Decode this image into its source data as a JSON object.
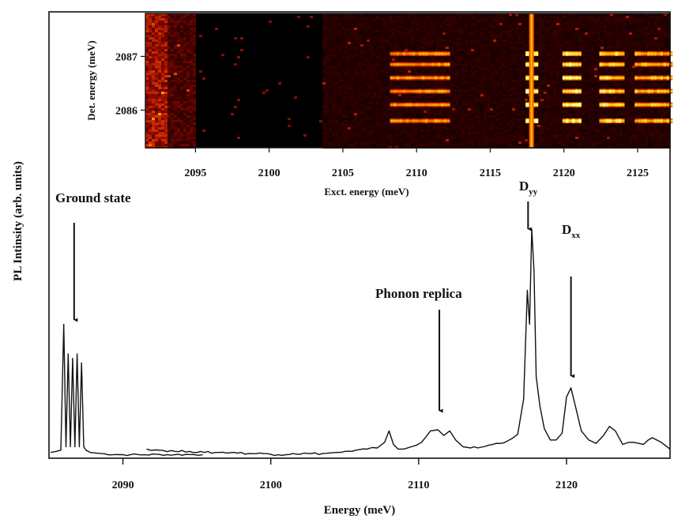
{
  "chart_data": [
    {
      "type": "line",
      "role": "main-spectrum",
      "title": "",
      "xlabel": "Energy (meV)",
      "ylabel": "PL Intinsity (arb. units)",
      "xlim": [
        2085,
        2127
      ],
      "ylim": [
        0,
        100
      ],
      "xticks": [
        2090,
        2100,
        2110,
        2120
      ],
      "ytick_labels": "none",
      "grid": false,
      "series": [
        {
          "name": "",
          "x": [
            2085.1,
            2085.5,
            2085.8,
            2086.0,
            2086.15,
            2086.3,
            2086.45,
            2086.6,
            2086.75,
            2086.9,
            2087.05,
            2087.2,
            2087.35,
            2087.5,
            2087.8,
            2088.5,
            2089.5,
            2090.5,
            2091.5,
            2092.5,
            2093.5,
            2094.5,
            2095.4
          ],
          "y": [
            1.5,
            2.0,
            2.5,
            58.0,
            4.0,
            45.0,
            4.0,
            43.0,
            4.0,
            45.0,
            4.0,
            41.0,
            4.0,
            2.5,
            1.5,
            1.0,
            0.6,
            0.5,
            0.5,
            0.6,
            0.5,
            0.6,
            0.5
          ]
        },
        {
          "name": "",
          "x": [
            2091.6,
            2092.5,
            2093.5,
            2094.5,
            2095.5,
            2096.5,
            2097.5,
            2098.5,
            2099.5,
            2100.5,
            2101.5,
            2102.5,
            2103.5,
            2104.5,
            2105.5,
            2106.5,
            2107.2,
            2107.7,
            2108.0,
            2108.3,
            2108.6,
            2109.0,
            2109.5,
            2110.2,
            2110.8,
            2111.3,
            2111.7,
            2112.1,
            2112.5,
            2113.0,
            2114.0,
            2115.0,
            2116.0,
            2116.7,
            2117.1,
            2117.35,
            2117.5,
            2117.65,
            2117.8,
            2117.95,
            2118.2,
            2118.5,
            2118.9,
            2119.3,
            2119.7,
            2120.0,
            2120.3,
            2120.6,
            2121.0,
            2121.5,
            2122.0,
            2122.5,
            2122.9,
            2123.3,
            2123.8,
            2124.5,
            2125.2,
            2125.8,
            2126.4,
            2127.0
          ],
          "y": [
            3.0,
            2.5,
            2.0,
            2.0,
            1.5,
            1.5,
            1.5,
            1.0,
            1.0,
            0.5,
            1.0,
            1.0,
            1.0,
            1.5,
            2.0,
            3.0,
            3.5,
            6.0,
            11.0,
            5.0,
            3.0,
            3.0,
            4.0,
            6.0,
            11.0,
            11.5,
            9.0,
            11.0,
            7.0,
            4.0,
            3.5,
            5.0,
            6.5,
            9.5,
            25.0,
            73.0,
            58.0,
            100.0,
            82.0,
            35.0,
            22.0,
            12.0,
            7.0,
            7.0,
            10.0,
            26.0,
            30.0,
            22.0,
            11.0,
            7.0,
            5.5,
            9.0,
            13.0,
            11.0,
            5.0,
            6.0,
            5.0,
            8.0,
            6.0,
            3.0
          ]
        }
      ],
      "annotations": [
        {
          "text": "Ground state",
          "x": 2086.7
        },
        {
          "text": "Phonon replica",
          "x": 2111.4
        },
        {
          "text": "D",
          "sub": "yy",
          "x": 2117.4
        },
        {
          "text": "D",
          "sub": "xx",
          "x": 2120.3
        }
      ]
    },
    {
      "type": "heatmap",
      "role": "inset-map",
      "title": "",
      "xlabel": "Exct. energy (meV)",
      "ylabel": "Det. energy (meV)",
      "xlim": [
        2091.6,
        2127.2
      ],
      "ylim": [
        2085.3,
        2087.8
      ],
      "xticks": [
        2095,
        2100,
        2105,
        2110,
        2115,
        2120,
        2125
      ],
      "yticks": [
        2086,
        2087
      ],
      "grid": false,
      "colormap": [
        "#000000",
        "#3a0000",
        "#8a0a00",
        "#d02a00",
        "#ff7a00",
        "#ffd000",
        "#ffffa0"
      ],
      "det_lines": [
        2085.8,
        2086.1,
        2086.35,
        2086.6,
        2086.85,
        2087.05
      ],
      "excitation_bands": [
        {
          "from": 2108.2,
          "to": 2112.2,
          "intensity": 0.55
        },
        {
          "from": 2117.4,
          "to": 2118.2,
          "intensity": 1.0
        },
        {
          "from": 2119.9,
          "to": 2121.0,
          "intensity": 0.85
        },
        {
          "from": 2122.4,
          "to": 2124.0,
          "intensity": 0.75
        },
        {
          "from": 2124.8,
          "to": 2127.2,
          "intensity": 0.65
        }
      ],
      "bright_columns": [
        2117.8
      ]
    }
  ]
}
